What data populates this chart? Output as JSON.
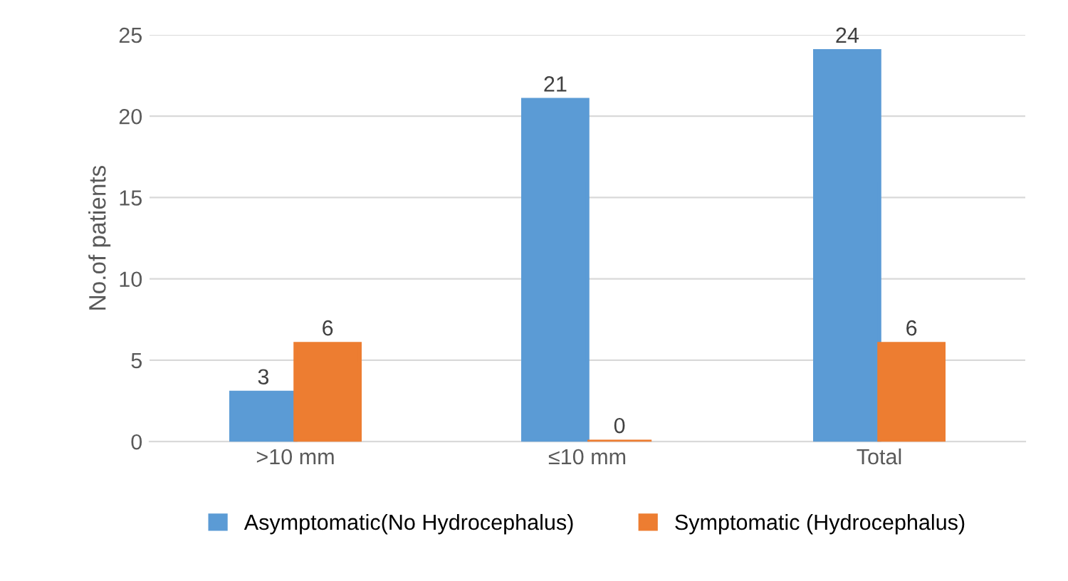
{
  "chart_data": {
    "type": "bar",
    "ylabel": "No.of patients",
    "categories": [
      ">10 mm",
      "≤10 mm",
      "Total"
    ],
    "series": [
      {
        "name": "Asymptomatic(No Hydrocephalus)",
        "color": "#5b9bd5",
        "values": [
          3,
          21,
          24
        ]
      },
      {
        "name": "Symptomatic (Hydrocephalus)",
        "color": "#ed7d31",
        "values": [
          6,
          0,
          6
        ]
      }
    ],
    "ylim": [
      0,
      25
    ],
    "yticks": [
      0,
      5,
      10,
      15,
      20,
      25
    ],
    "grid": "y",
    "legend": "bottom",
    "data_labels": true
  }
}
